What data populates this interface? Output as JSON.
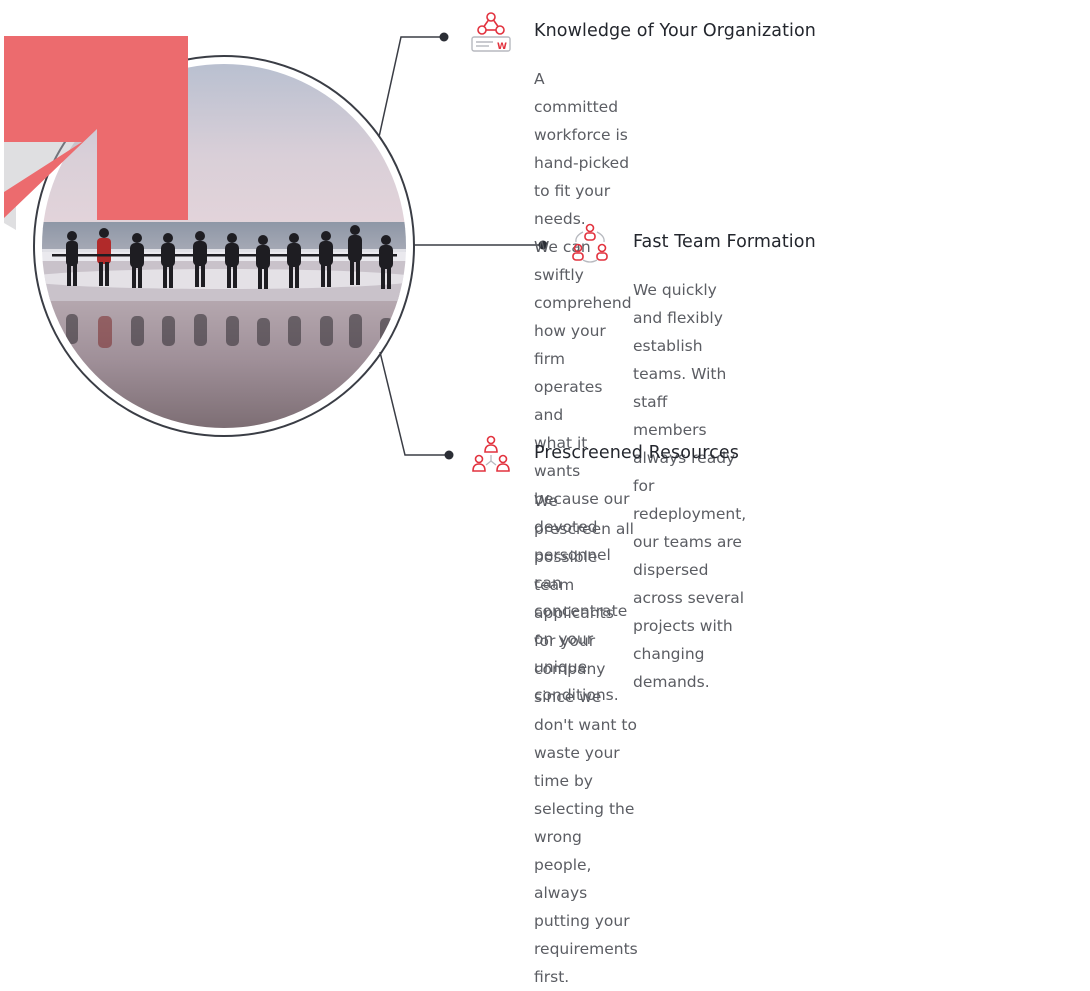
{
  "features": [
    {
      "title": "Knowledge of Your Organization",
      "icon": "organization-knowledge-icon",
      "lines": [
        "A committed workforce is hand-picked to fit your needs.",
        "We can swiftly comprehend how your firm operates and",
        "what it wants because our devoted personnel can",
        "concentrate on your unique conditions."
      ]
    },
    {
      "title": "Fast Team Formation",
      "icon": "team-formation-icon",
      "lines": [
        "We quickly and flexibly establish teams. With staff",
        "members always ready for redeployment, our teams are",
        "dispersed across several projects with changing",
        "demands."
      ]
    },
    {
      "title": "Prescreened Resources",
      "icon": "prescreened-resources-icon",
      "lines": [
        "We prescreen all possible team applicants for your",
        "company since we don't want to waste your time by",
        "selecting the wrong people, always putting your",
        "requirements first."
      ]
    }
  ],
  "colors": {
    "accent": "#ec6b6e",
    "icon_red": "#e2323e",
    "line": "#3a3d45",
    "title": "#23262d",
    "text": "#5b5d63"
  }
}
